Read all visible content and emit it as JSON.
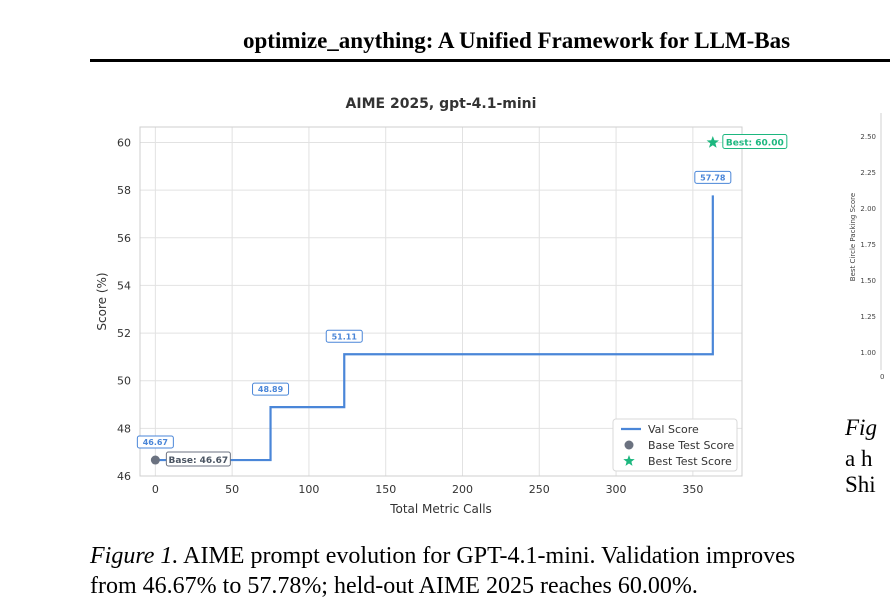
{
  "page": {
    "header_title": "optimize_anything: A Unified Framework for LLM-Bas",
    "caption_label": "Figure 1.",
    "caption_text": "AIME prompt evolution for GPT-4.1-mini. Validation improves from 46.67% to 57.78%; held-out AIME 2025 reaches 60.00%.",
    "side_fig_label": "Fig",
    "side_lines": [
      "a h",
      "Shi"
    ]
  },
  "chart_data": [
    {
      "type": "line",
      "title": "AIME 2025, gpt-4.1-mini",
      "xlabel": "Total Metric Calls",
      "ylabel": "Score (%)",
      "xlim": [
        -10,
        382
      ],
      "ylim": [
        46,
        60.65
      ],
      "xticks": [
        0,
        50,
        100,
        150,
        200,
        250,
        300,
        350
      ],
      "yticks": [
        46,
        48,
        50,
        52,
        54,
        56,
        58,
        60
      ],
      "grid": true,
      "legend": "bottom-right",
      "colors": {
        "val": "#4a86d8",
        "base": "#6b7280",
        "best": "#1db77f"
      },
      "series": [
        {
          "name": "Val Score",
          "kind": "step",
          "x": [
            0,
            75,
            123,
            363,
            363
          ],
          "y": [
            46.67,
            48.89,
            51.11,
            51.11,
            57.78
          ]
        },
        {
          "name": "Base Test Score",
          "kind": "point",
          "x": [
            0
          ],
          "y": [
            46.67
          ]
        },
        {
          "name": "Best Test Score",
          "kind": "point",
          "x": [
            363
          ],
          "y": [
            60.0
          ]
        }
      ],
      "step_labels": [
        {
          "x": 0,
          "y": 46.67,
          "text": "46.67"
        },
        {
          "x": 75,
          "y": 48.89,
          "text": "48.89"
        },
        {
          "x": 123,
          "y": 51.11,
          "text": "51.11"
        },
        {
          "x": 363,
          "y": 57.78,
          "text": "57.78"
        }
      ],
      "point_labels": [
        {
          "x": 0,
          "y": 46.67,
          "text": "Base: 46.67"
        },
        {
          "x": 363,
          "y": 60.0,
          "text": "Best: 60.00"
        }
      ]
    },
    {
      "type": "line",
      "ylabel": "Best Circle Packing Score",
      "yticks": [
        "1.00",
        "1.25",
        "1.50",
        "1.75",
        "2.00",
        "2.25",
        "2.50"
      ],
      "xticks": [
        "0"
      ]
    }
  ]
}
